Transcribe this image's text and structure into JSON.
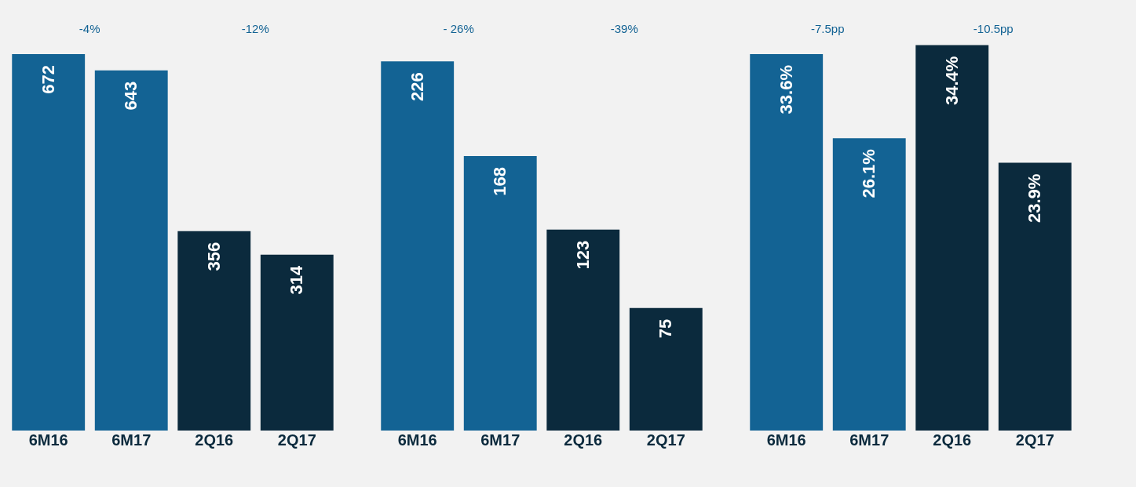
{
  "chart_data": [
    {
      "type": "bar",
      "categories": [
        "6M16",
        "6M17",
        "2Q16",
        "2Q17"
      ],
      "values": [
        672,
        643,
        356,
        314
      ],
      "colors": [
        "#136394",
        "#136394",
        "#0b2a3d",
        "#0b2a3d"
      ],
      "data_labels": true,
      "tick_labels": "x",
      "annotations": [
        "-4%",
        "-12%"
      ]
    },
    {
      "type": "bar",
      "categories": [
        "6M16",
        "6M17",
        "2Q16",
        "2Q17"
      ],
      "values": [
        226,
        168,
        123,
        75
      ],
      "colors": [
        "#136394",
        "#136394",
        "#0b2a3d",
        "#0b2a3d"
      ],
      "data_labels": true,
      "tick_labels": "x",
      "annotations": [
        "- 26%",
        "-39%"
      ]
    },
    {
      "type": "bar",
      "categories": [
        "6M16",
        "6M17",
        "2Q16",
        "2Q17"
      ],
      "values": [
        33.6,
        26.1,
        34.4,
        23.9
      ],
      "value_labels": [
        "33.6%",
        "26.1%",
        "34.4%",
        "23.9%"
      ],
      "colors": [
        "#136394",
        "#136394",
        "#0b2a3d",
        "#0b2a3d"
      ],
      "tick_labels": "x",
      "annotations": [
        "-7.5pp",
        "-10.5pp"
      ]
    }
  ]
}
